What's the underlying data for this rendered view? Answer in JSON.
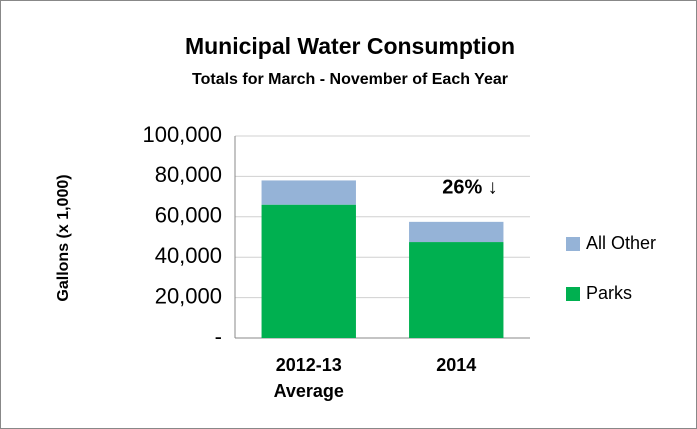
{
  "chart_data": {
    "type": "stacked_bar",
    "title": "Municipal Water Consumption",
    "subtitle": "Totals for March - November of Each Year",
    "y_label": "Gallons (x 1,000)",
    "annotation": "26% ↓",
    "categories": [
      "2012-13 Average",
      "2014"
    ],
    "series": [
      {
        "name": "Parks",
        "color": "#00b050",
        "values": [
          66000,
          47500
        ]
      },
      {
        "name": "All Other",
        "color": "#95b3d7",
        "values": [
          12000,
          10000
        ]
      }
    ],
    "ylim": [
      0,
      100000
    ],
    "yticks": [
      {
        "value": 0,
        "label": "-"
      },
      {
        "value": 20000,
        "label": "20,000"
      },
      {
        "value": 40000,
        "label": "40,000"
      },
      {
        "value": 60000,
        "label": "60,000"
      },
      {
        "value": 80000,
        "label": "80,000"
      },
      {
        "value": 100000,
        "label": "100,000"
      }
    ],
    "grid": true,
    "legend": "right"
  }
}
